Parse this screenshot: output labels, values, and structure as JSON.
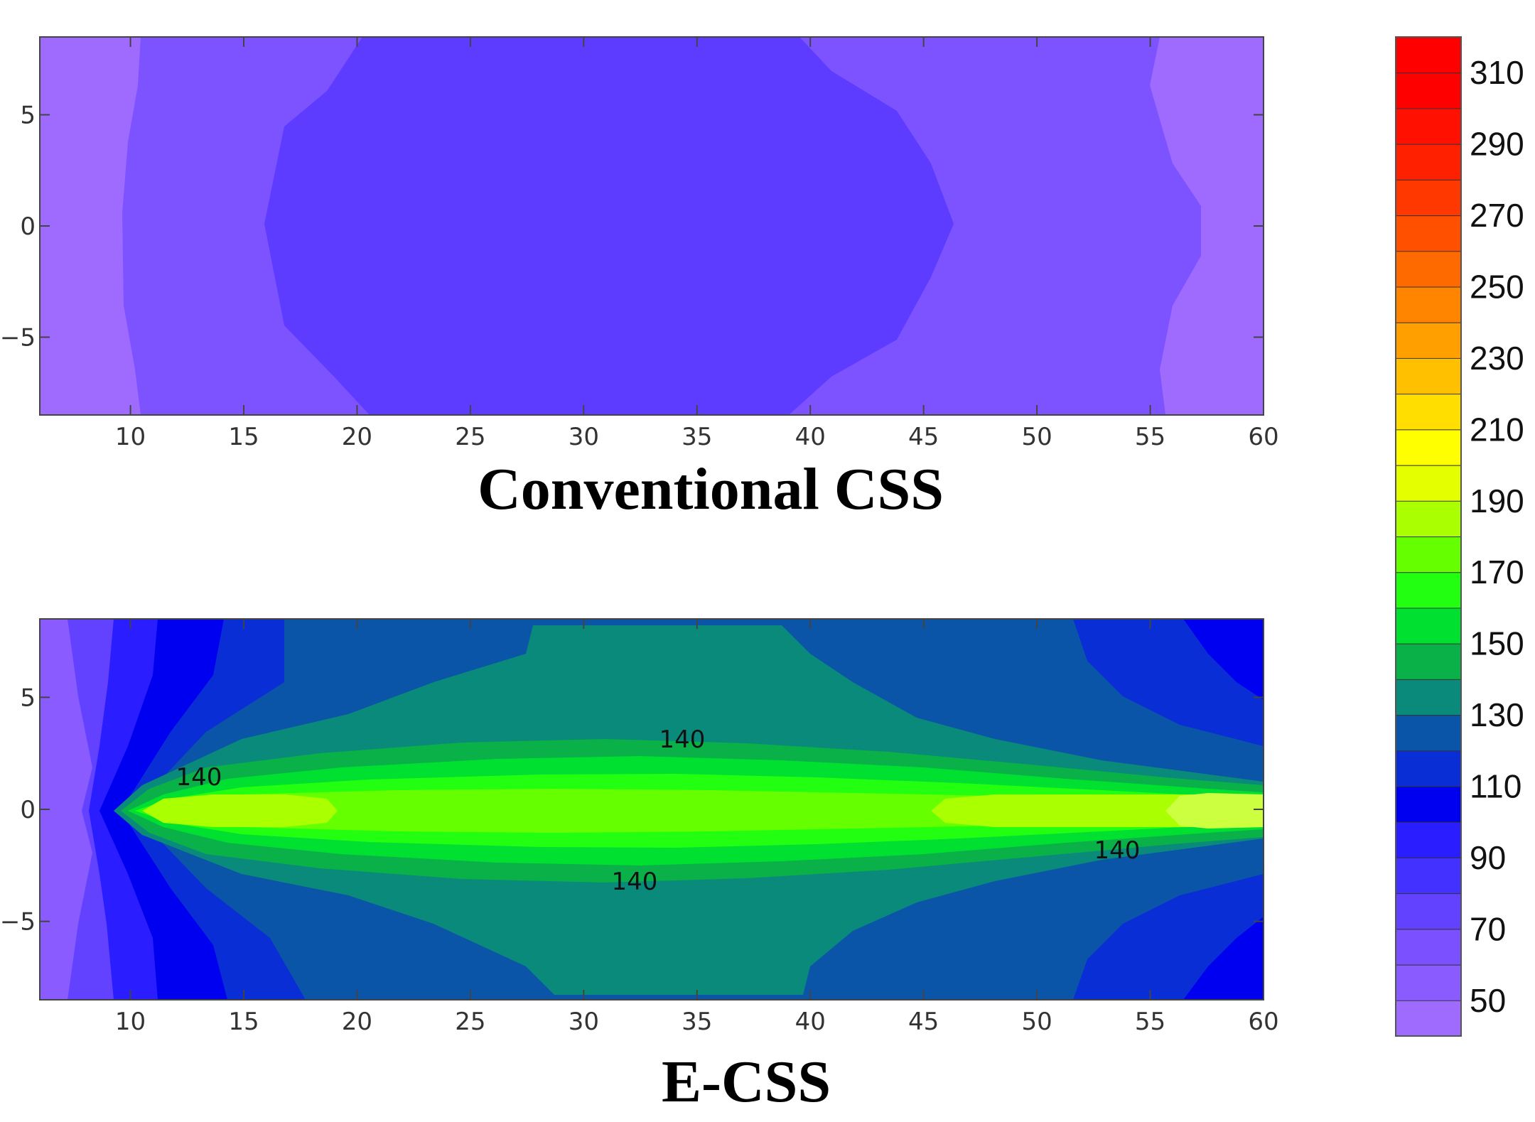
{
  "chart_data": [
    {
      "type": "heatmap",
      "title": "Conventional CSS",
      "x_range": [
        6,
        60
      ],
      "y_range": [
        -8.5,
        8.5
      ],
      "x_ticks": [
        10,
        15,
        20,
        25,
        30,
        35,
        40,
        45,
        50,
        55,
        60
      ],
      "y_ticks": [
        5,
        0,
        -5
      ],
      "y_tick_labels": [
        "5",
        "0",
        "−5"
      ],
      "regions": [
        {
          "level": 50,
          "x_extent_at_y0": [
            6,
            10
          ],
          "note": "edge band"
        },
        {
          "level": 60,
          "x_extent_at_y0": [
            10,
            16
          ],
          "note": "band"
        },
        {
          "level": 70,
          "x_extent_at_y0": [
            16,
            46.5
          ],
          "note": "center core"
        },
        {
          "level": 60,
          "x_extent_at_y0": [
            46.5,
            57
          ],
          "note": "band"
        },
        {
          "level": 50,
          "x_extent_at_y0": [
            57,
            60
          ],
          "note": "edge band"
        }
      ]
    },
    {
      "type": "heatmap",
      "title": "E-CSS",
      "x_range": [
        6,
        60
      ],
      "y_range": [
        -8.5,
        8.5
      ],
      "x_ticks": [
        10,
        15,
        20,
        25,
        30,
        35,
        40,
        45,
        50,
        55,
        60
      ],
      "y_ticks": [
        5,
        0,
        -5
      ],
      "y_tick_labels": [
        "5",
        "0",
        "−5"
      ],
      "contour_labels": [
        {
          "text": "140",
          "x": 13,
          "y": 1.5
        },
        {
          "text": "140",
          "x": 34.5,
          "y": 3.2
        },
        {
          "text": "140",
          "x": 32.5,
          "y": -3.2
        },
        {
          "text": "140",
          "x": 53.5,
          "y": -1.8
        }
      ],
      "levels_present": [
        60,
        70,
        80,
        90,
        100,
        110,
        120,
        130,
        140,
        150,
        160,
        170,
        180,
        190,
        200
      ],
      "peak": {
        "x_range": [
          12,
          60
        ],
        "y": 0,
        "level": 200
      }
    }
  ],
  "colorbar": {
    "min": 40,
    "max": 320,
    "step": 10,
    "tick_labels": [
      "310",
      "290",
      "270",
      "250",
      "230",
      "210",
      "190",
      "170",
      "150",
      "130",
      "110",
      "90",
      "70",
      "50"
    ],
    "colors": [
      "#9f6bff",
      "#8a5cff",
      "#7b50ff",
      "#6242ff",
      "#4331ff",
      "#2a1dff",
      "#0000f0",
      "#0a2ed6",
      "#0b55a8",
      "#0a8a7a",
      "#0ab048",
      "#00e030",
      "#22ff10",
      "#66ff00",
      "#aaff00",
      "#e4ff00",
      "#ffff00",
      "#ffde00",
      "#ffc000",
      "#ffa000",
      "#ff8400",
      "#ff6a00",
      "#ff5000",
      "#ff3800",
      "#ff2000",
      "#ff1000",
      "#ff0000",
      "#ff0000"
    ]
  }
}
